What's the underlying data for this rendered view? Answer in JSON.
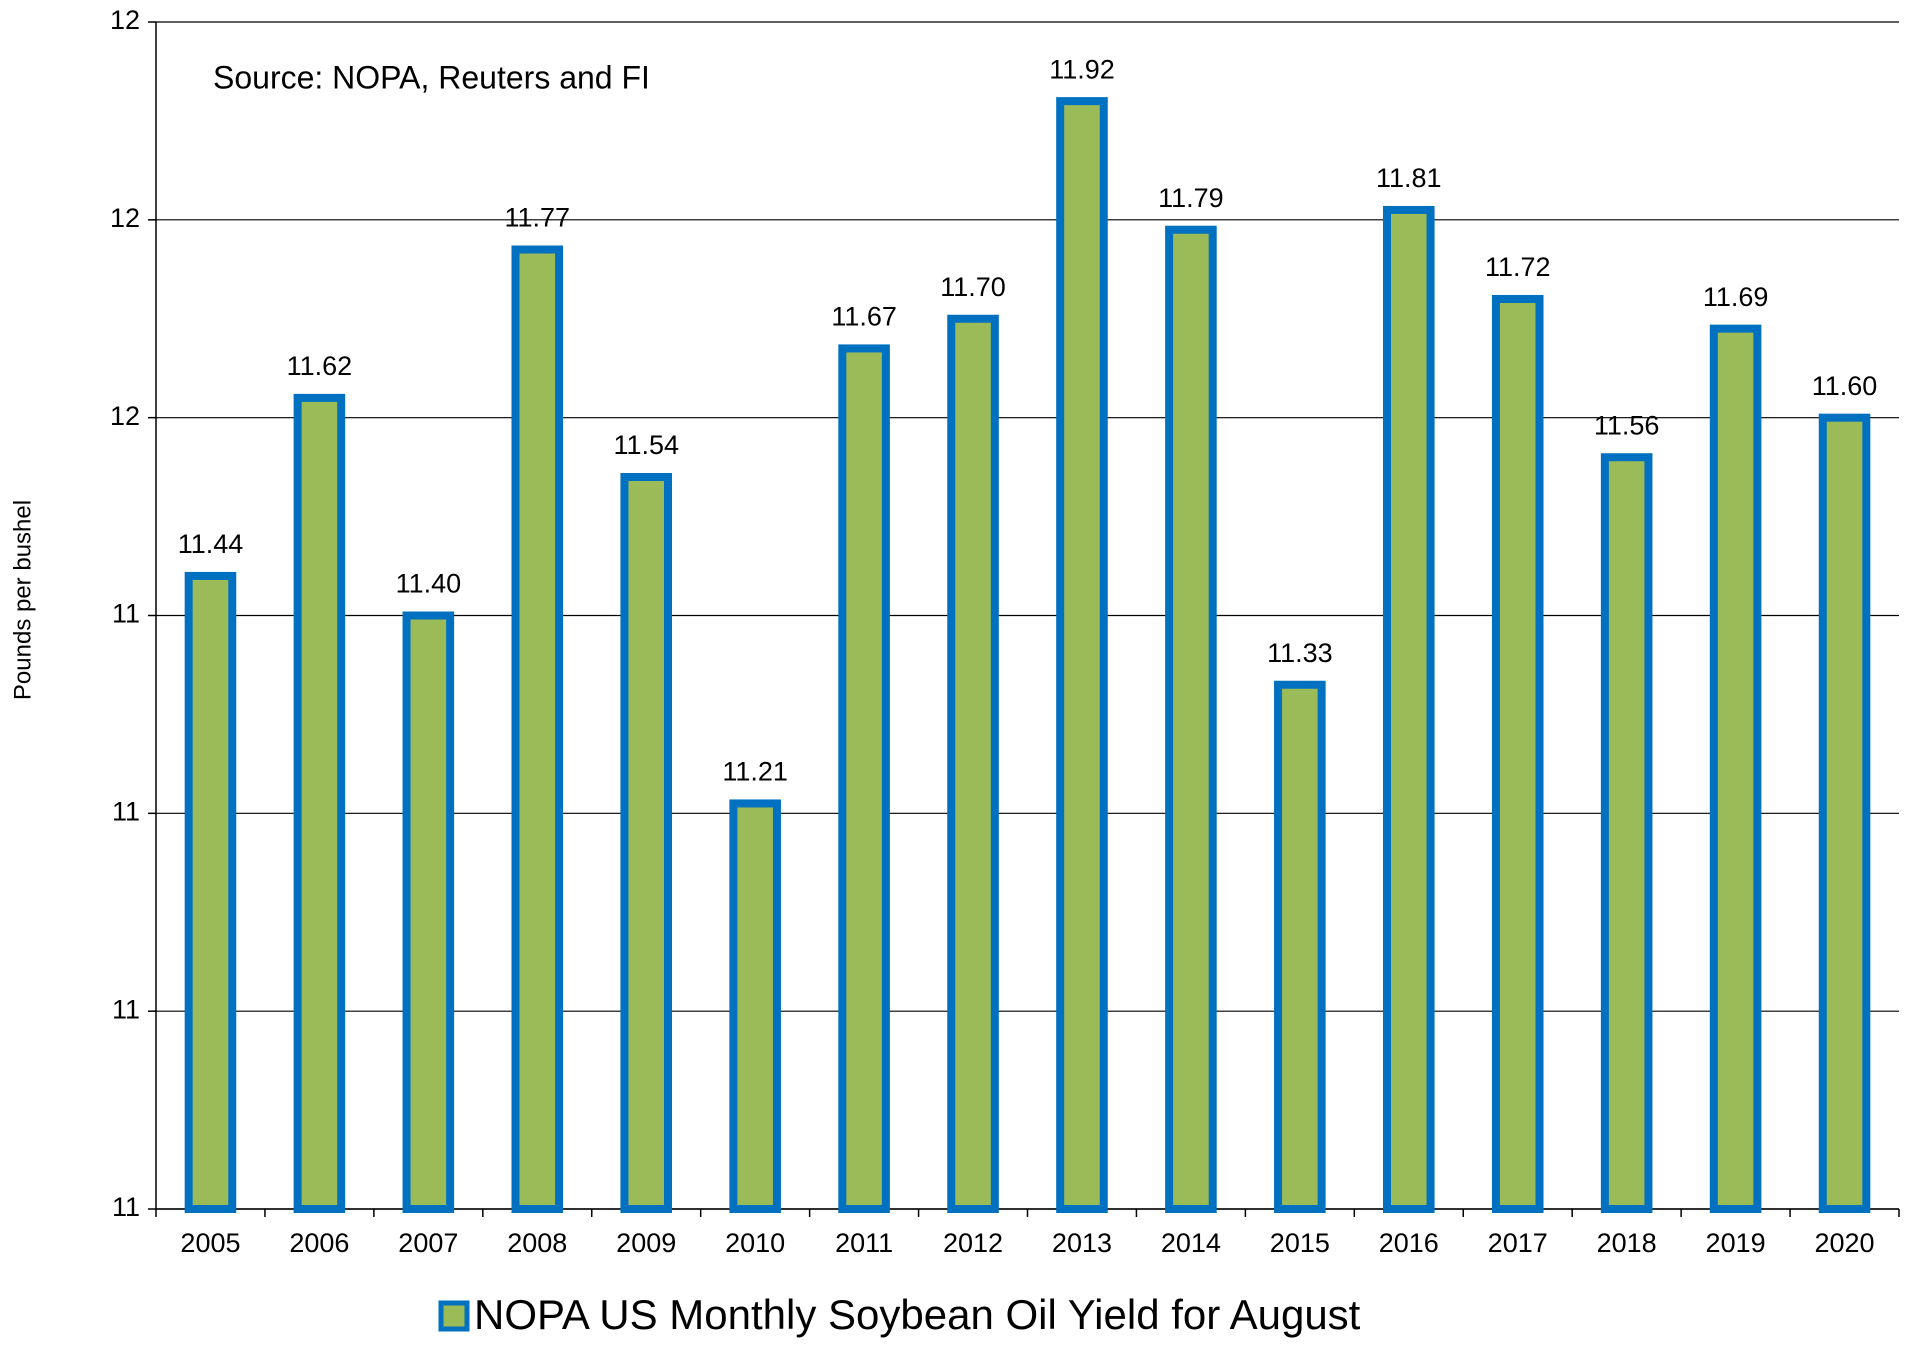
{
  "chart_data": {
    "type": "bar",
    "annotation": "Source: NOPA, Reuters and FI",
    "y_label": "Pounds per bushel",
    "categories": [
      "2005",
      "2006",
      "2007",
      "2008",
      "2009",
      "2010",
      "2011",
      "2012",
      "2013",
      "2014",
      "2015",
      "2016",
      "2017",
      "2018",
      "2019",
      "2020"
    ],
    "series": [
      {
        "name": "NOPA US Monthly Soybean Oil Yield for August",
        "color": "#9bbb59",
        "edge_color": "#0070c0",
        "values": [
          11.44,
          11.62,
          11.4,
          11.77,
          11.54,
          11.21,
          11.67,
          11.7,
          11.92,
          11.79,
          11.33,
          11.81,
          11.72,
          11.56,
          11.69,
          11.6
        ],
        "value_labels": [
          "11.44",
          "11.62",
          "11.40",
          "11.77",
          "11.54",
          "11.21",
          "11.67",
          "11.70",
          "11.92",
          "11.79",
          "11.33",
          "11.81",
          "11.72",
          "11.56",
          "11.69",
          "11.60"
        ]
      }
    ],
    "ylim": [
      10.8,
      12.0
    ],
    "yticks": [
      {
        "value": 10.8,
        "label": "11"
      },
      {
        "value": 11.0,
        "label": "11"
      },
      {
        "value": 11.2,
        "label": "11"
      },
      {
        "value": 11.4,
        "label": "11"
      },
      {
        "value": 11.6,
        "label": "12"
      },
      {
        "value": 11.8,
        "label": "12"
      },
      {
        "value": 12.0,
        "label": "12"
      }
    ],
    "grid": true
  }
}
